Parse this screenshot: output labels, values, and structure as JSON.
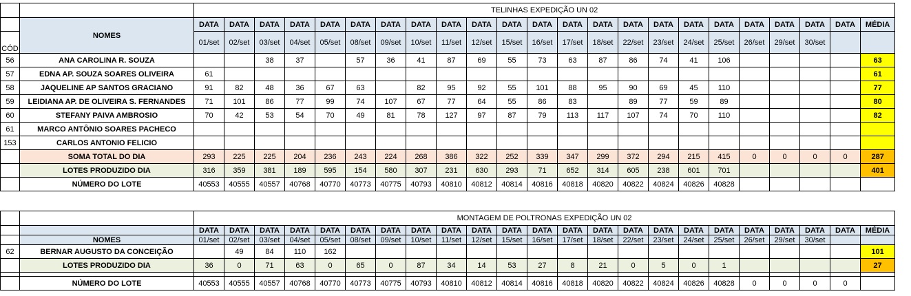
{
  "dates": [
    "01/set",
    "02/set",
    "03/set",
    "04/set",
    "05/set",
    "08/set",
    "09/set",
    "10/set",
    "11/set",
    "12/set",
    "15/set",
    "16/set",
    "17/set",
    "18/set",
    "22/set",
    "23/set",
    "24/set",
    "25/set",
    "26/set",
    "29/set",
    "30/set",
    ""
  ],
  "labels": {
    "data": "DATA",
    "media": "MÉDIA",
    "cod": "CÓD",
    "nomes": "NOMES"
  },
  "section1": {
    "title": "TELINHAS EXPEDIÇÃO UN 02",
    "rows": [
      {
        "cod": "56",
        "name": "ANA CAROLINA R. SOUZA",
        "values": [
          "",
          "",
          "38",
          "37",
          "",
          "57",
          "36",
          "41",
          "87",
          "69",
          "55",
          "73",
          "63",
          "87",
          "86",
          "74",
          "41",
          "106",
          "",
          "",
          "",
          ""
        ],
        "media": "63"
      },
      {
        "cod": "57",
        "name": "EDNA AP. SOUZA SOARES OLIVEIRA",
        "values": [
          "61",
          "",
          "",
          "",
          "",
          "",
          "",
          "",
          "",
          "",
          "",
          "",
          "",
          "",
          "",
          "",
          "",
          "",
          "",
          "",
          "",
          ""
        ],
        "media": "61"
      },
      {
        "cod": "58",
        "name": "JAQUELINE AP SANTOS GRACIANO",
        "values": [
          "91",
          "82",
          "48",
          "36",
          "67",
          "63",
          "",
          "82",
          "95",
          "92",
          "55",
          "101",
          "88",
          "95",
          "90",
          "69",
          "45",
          "110",
          "",
          "",
          "",
          ""
        ],
        "media": "77"
      },
      {
        "cod": "59",
        "name": "LEIDIANA AP. DE OLIVEIRA S. FERNANDES",
        "values": [
          "71",
          "101",
          "86",
          "77",
          "99",
          "74",
          "107",
          "67",
          "77",
          "64",
          "55",
          "86",
          "83",
          "",
          "89",
          "77",
          "59",
          "89",
          "",
          "",
          "",
          ""
        ],
        "media": "80"
      },
      {
        "cod": "60",
        "name": "STEFANY PAIVA AMBROSIO",
        "values": [
          "70",
          "42",
          "53",
          "54",
          "70",
          "49",
          "81",
          "78",
          "127",
          "97",
          "87",
          "79",
          "113",
          "117",
          "107",
          "74",
          "70",
          "110",
          "",
          "",
          "",
          ""
        ],
        "media": "82"
      },
      {
        "cod": "61",
        "name": "MARCO ANTÔNIO SOARES PACHECO",
        "values": [
          "",
          "",
          "",
          "",
          "",
          "",
          "",
          "",
          "",
          "",
          "",
          "",
          "",
          "",
          "",
          "",
          "",
          "",
          "",
          "",
          "",
          ""
        ],
        "media": ""
      },
      {
        "cod": "153",
        "name": "CARLOS ANTONIO FELICIO",
        "values": [
          "",
          "",
          "",
          "",
          "",
          "",
          "",
          "",
          "",
          "",
          "",
          "",
          "",
          "",
          "",
          "",
          "",
          "",
          "",
          "",
          "",
          ""
        ],
        "media": ""
      }
    ],
    "soma": {
      "label": "SOMA TOTAL DO DIA",
      "values": [
        "293",
        "225",
        "225",
        "204",
        "236",
        "243",
        "224",
        "268",
        "386",
        "322",
        "252",
        "339",
        "347",
        "299",
        "372",
        "294",
        "215",
        "415",
        "0",
        "0",
        "0",
        "0"
      ],
      "media": "287"
    },
    "lotes": {
      "label": "LOTES PRODUZIDO DIA",
      "values": [
        "316",
        "359",
        "381",
        "189",
        "595",
        "154",
        "580",
        "307",
        "231",
        "630",
        "293",
        "71",
        "652",
        "314",
        "605",
        "238",
        "601",
        "701",
        "",
        "",
        "",
        ""
      ],
      "media": "401"
    },
    "numero": {
      "label": "NÚMERO DO LOTE",
      "values": [
        "40553",
        "40555",
        "40557",
        "40768",
        "40770",
        "40773",
        "40775",
        "40793",
        "40810",
        "40812",
        "40814",
        "40816",
        "40818",
        "40820",
        "40822",
        "40824",
        "40826",
        "40828",
        "",
        "",
        "",
        ""
      ]
    }
  },
  "section2": {
    "title": "MONTAGEM DE POLTRONAS EXPEDIÇÃO UN 02",
    "rows": [
      {
        "cod": "62",
        "name": "BERNAR AUGUSTO DA CONCEIÇÃO",
        "values": [
          "",
          "49",
          "84",
          "110",
          "162",
          "",
          "",
          "",
          "",
          "",
          "",
          "",
          "",
          "",
          "",
          "",
          "",
          "",
          "",
          "",
          "",
          ""
        ],
        "media": "101"
      }
    ],
    "lotes": {
      "label": "LOTES PRODUZIDO DIA",
      "values": [
        "36",
        "0",
        "71",
        "63",
        "0",
        "65",
        "0",
        "87",
        "34",
        "14",
        "53",
        "27",
        "8",
        "21",
        "0",
        "5",
        "0",
        "1",
        "",
        "",
        "",
        ""
      ],
      "media": "27"
    },
    "numero": {
      "label": "NÚMERO DO LOTE",
      "values": [
        "40553",
        "40555",
        "40557",
        "40768",
        "40770",
        "40773",
        "40775",
        "40793",
        "40810",
        "40812",
        "40814",
        "40816",
        "40818",
        "40820",
        "40822",
        "40824",
        "40826",
        "40828",
        "0",
        "0",
        "0",
        "0"
      ]
    }
  },
  "colors": {
    "yellow": "#ffff00",
    "orange": "#ffc000",
    "header_blue": "#dce6f1",
    "soma_peach": "#fbe3d6",
    "lotes_green": "#ebf1de",
    "title_red": "#e21d1d"
  }
}
